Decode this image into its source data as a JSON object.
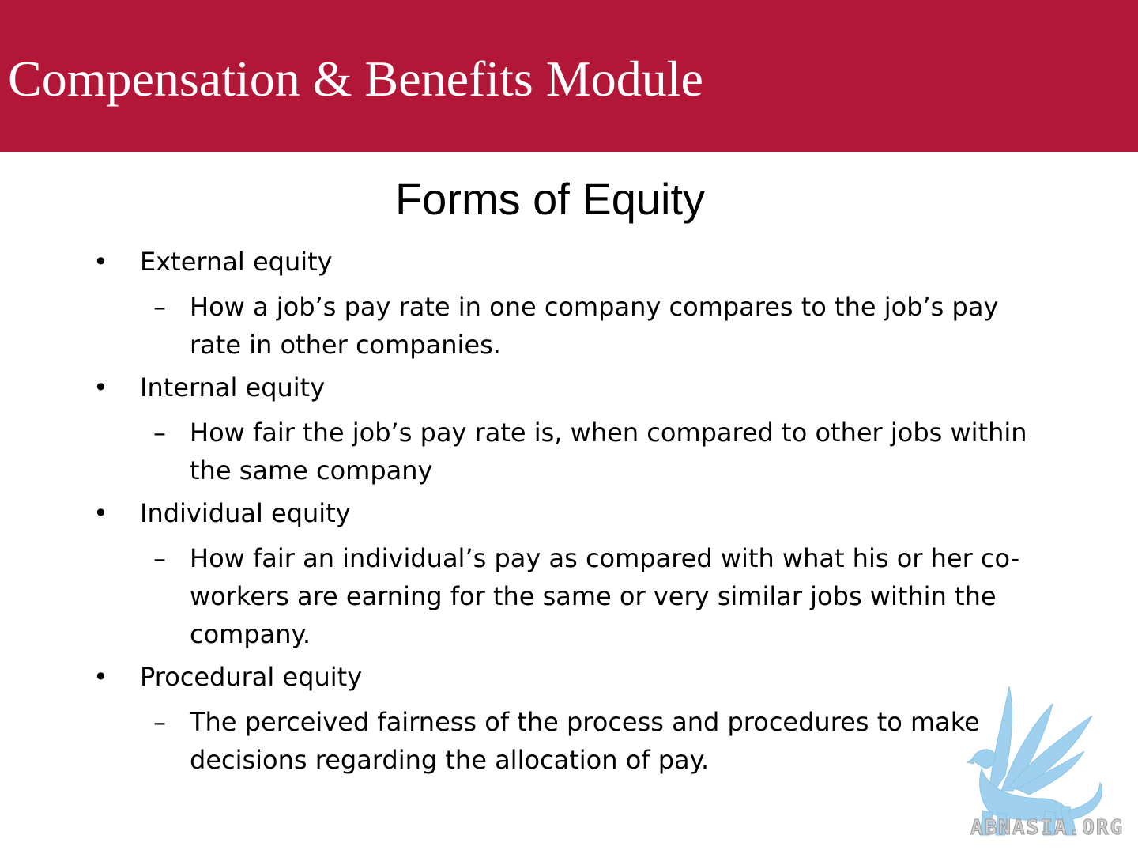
{
  "header": {
    "title": "Compensation & Benefits Module",
    "background_color": "#b31738"
  },
  "slide": {
    "title": "Forms of Equity",
    "items": [
      {
        "bullet": "External equity",
        "sub": "How a job’s pay rate in one company compares to the job’s pay rate in other companies."
      },
      {
        "bullet": "Internal equity",
        "sub": "How fair the job’s pay rate is, when compared to other jobs within the same company"
      },
      {
        "bullet": "Individual equity",
        "sub": "How fair an individual’s pay as compared with what his or her co-workers are earning for the same or very similar jobs within the company."
      },
      {
        "bullet": "Procedural equity",
        "sub": "The perceived fairness of the process and procedures to make decisions regarding the allocation of pay."
      }
    ],
    "bullet_glyph": "•",
    "sub_glyph": "–"
  },
  "watermark": {
    "icon": "griffin-logo-icon",
    "text": "ABNASIA.ORG",
    "color": "#9fd0ee"
  }
}
